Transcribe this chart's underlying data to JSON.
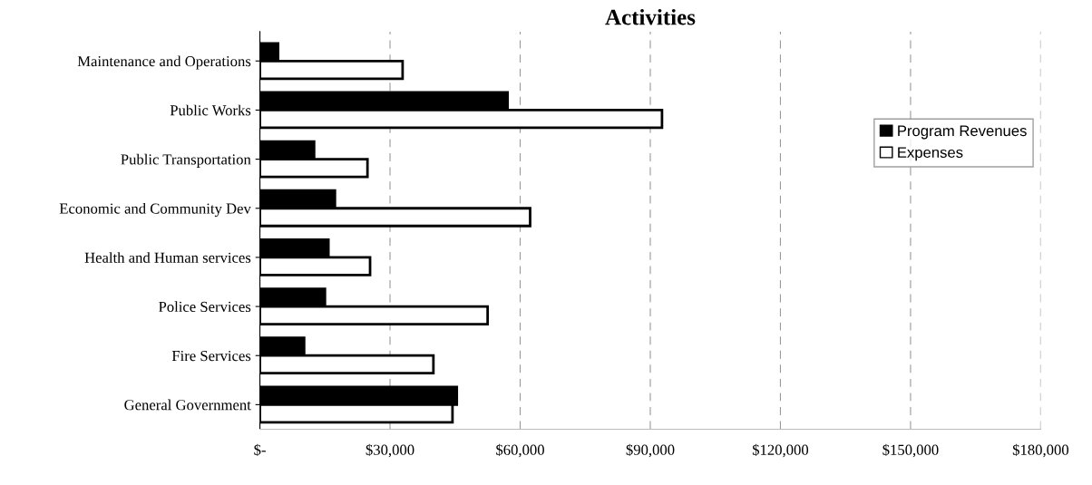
{
  "chart_data": {
    "type": "bar",
    "orientation": "horizontal",
    "title": "Activities",
    "categories": [
      "Maintenance and Operations",
      "Public Works",
      "Public Transportation",
      "Economic and Community Dev",
      "Health and Human services",
      "Police Services",
      "Fire Services",
      "General Government"
    ],
    "series": [
      {
        "name": "Program Revenues",
        "color": "#000000",
        "values": [
          4200,
          57100,
          12500,
          17300,
          15800,
          15000,
          10200,
          45400
        ]
      },
      {
        "name": "Expenses",
        "color": "#ffffff",
        "values": [
          32900,
          92700,
          24800,
          62300,
          25400,
          52500,
          40000,
          44400
        ]
      }
    ],
    "xlim": [
      0,
      180000
    ],
    "xticks": [
      {
        "value": 0,
        "label": "$-"
      },
      {
        "value": 30000,
        "label": "$30,000"
      },
      {
        "value": 60000,
        "label": "$60,000"
      },
      {
        "value": 90000,
        "label": "$90,000"
      },
      {
        "value": 120000,
        "label": "$120,000"
      },
      {
        "value": 150000,
        "label": "$150,000"
      },
      {
        "value": 180000,
        "label": "$180,000"
      }
    ],
    "grid": "x",
    "legend": "right"
  }
}
